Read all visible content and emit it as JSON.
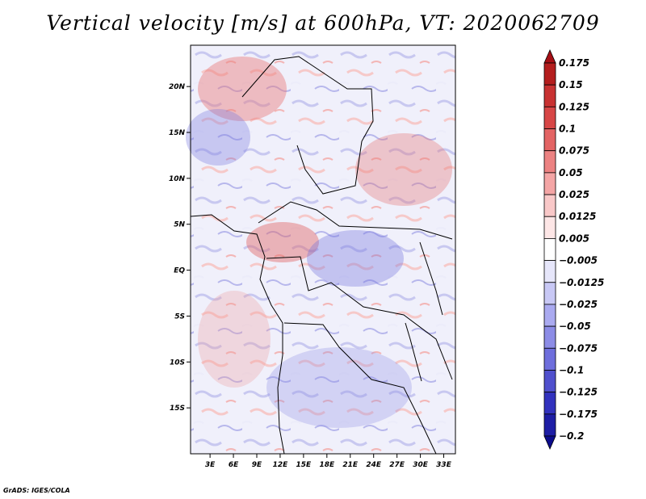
{
  "title": "Vertical velocity [m/s] at 600hPa, VT: 2020062709",
  "footer": "GrADS: IGES/COLA",
  "map": {
    "lat_labels": [
      "20N",
      "15N",
      "10N",
      "5N",
      "EQ",
      "5S",
      "10S",
      "15S"
    ],
    "lon_labels": [
      "3E",
      "6E",
      "9E",
      "12E",
      "15E",
      "18E",
      "21E",
      "24E",
      "27E",
      "30E",
      "33E"
    ],
    "lat_range": [
      -20,
      24.5
    ],
    "lon_range": [
      0.5,
      34.5
    ]
  },
  "colorbar": {
    "labels": [
      "0.175",
      "0.15",
      "0.125",
      "0.1",
      "0.075",
      "0.05",
      "0.025",
      "0.0125",
      "0.005",
      "−0.005",
      "−0.0125",
      "−0.025",
      "−0.05",
      "−0.075",
      "−0.1",
      "−0.125",
      "−0.175",
      "−0.2"
    ],
    "colors": [
      "#a50f15",
      "#b41e1e",
      "#c83232",
      "#d74646",
      "#e36464",
      "#ec8282",
      "#f4a5a5",
      "#f9c8c8",
      "#fde6e6",
      "#ffffff",
      "#e6e6fa",
      "#c8c8f5",
      "#aaaaf0",
      "#8c8ce6",
      "#6e6edc",
      "#5050cd",
      "#3232be",
      "#1e1ea5",
      "#0c0c8c"
    ]
  }
}
